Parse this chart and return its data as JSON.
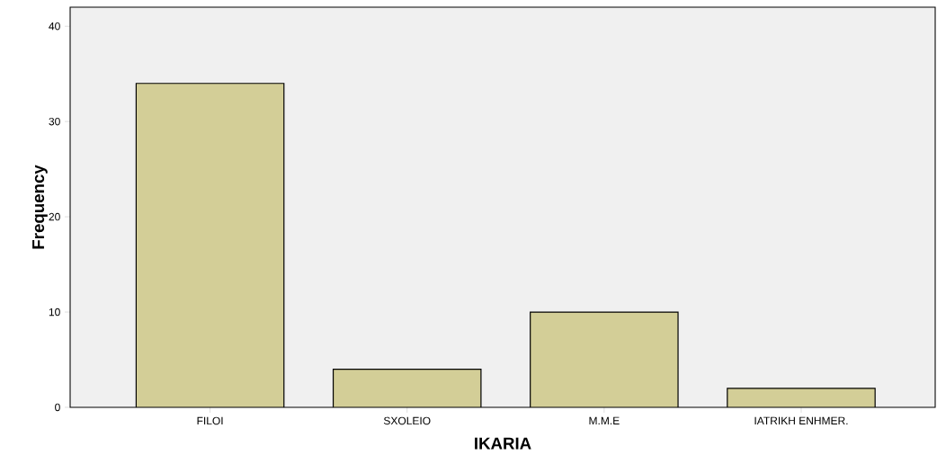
{
  "chart_data": {
    "type": "bar",
    "xlabel": "IKARIA",
    "ylabel": "Frequency",
    "categories": [
      "FILOI",
      "SXOLEIO",
      "M.M.E",
      "IATRIKH ENHMER."
    ],
    "values": [
      34,
      4,
      10,
      2
    ],
    "color": "#d3ce97",
    "ylim": [
      0,
      42
    ],
    "yticks": [
      0,
      10,
      20,
      30,
      40
    ]
  }
}
